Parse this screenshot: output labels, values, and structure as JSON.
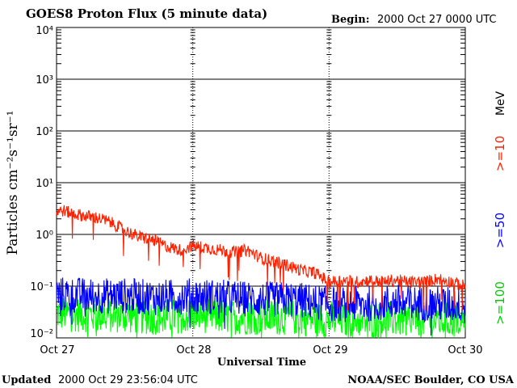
{
  "header": {
    "title": "GOES8 Proton Flux (5 minute data)",
    "begin_label": "Begin:",
    "begin_value": "2000 Oct 27 0000 UTC"
  },
  "footer": {
    "updated_label": "Updated",
    "updated_value": "2000 Oct 29 23:56:04 UTC",
    "credit": "NOAA/SEC Boulder, CO USA"
  },
  "chart_data": {
    "type": "line",
    "title": "GOES8 Proton Flux (5 minute data)",
    "xlabel": "Universal Time",
    "ylabel": "Particles cm⁻²s⁻¹sr⁻¹",
    "yscale": "log",
    "ylim": [
      0.01,
      10000
    ],
    "ytick_labels": [
      "10⁻²",
      "10⁻¹",
      "10⁰",
      "10¹",
      "10²",
      "10³",
      "10⁴"
    ],
    "x_categories": [
      "Oct 27",
      "Oct 28",
      "Oct 29",
      "Oct 30"
    ],
    "grid": true,
    "legend_position": "right",
    "legend_unit": "MeV",
    "series": [
      {
        "name": ">=10",
        "color": "#ff2000",
        "x": [
          0,
          0.05,
          0.1,
          0.2,
          0.3,
          0.4,
          0.5,
          0.6,
          0.7,
          0.8,
          0.9,
          1.0,
          1.1,
          1.2,
          1.3,
          1.4,
          1.5,
          1.6,
          1.7,
          1.8,
          1.9,
          2.0,
          2.1,
          2.2,
          2.3,
          2.4,
          2.5,
          2.6,
          2.7,
          2.8,
          2.9,
          3.0
        ],
        "values": [
          2.8,
          2.9,
          2.6,
          2.3,
          2.1,
          1.7,
          1.2,
          0.9,
          0.8,
          0.6,
          0.5,
          0.6,
          0.55,
          0.5,
          0.45,
          0.5,
          0.35,
          0.3,
          0.25,
          0.2,
          0.18,
          0.12,
          0.13,
          0.12,
          0.13,
          0.12,
          0.13,
          0.12,
          0.12,
          0.14,
          0.12,
          0.1
        ]
      },
      {
        "name": ">=50",
        "color": "#0000ff",
        "x": [
          0,
          0.25,
          0.5,
          0.75,
          1.0,
          1.25,
          1.5,
          1.75,
          2.0,
          2.25,
          2.5,
          2.75,
          3.0
        ],
        "values": [
          0.07,
          0.065,
          0.065,
          0.06,
          0.065,
          0.06,
          0.055,
          0.055,
          0.045,
          0.045,
          0.05,
          0.045,
          0.045
        ]
      },
      {
        "name": ">=100",
        "color": "#00ff00",
        "x": [
          0,
          0.25,
          0.5,
          0.75,
          1.0,
          1.25,
          1.5,
          1.75,
          2.0,
          2.25,
          2.5,
          2.75,
          3.0
        ],
        "values": [
          0.03,
          0.028,
          0.027,
          0.025,
          0.028,
          0.026,
          0.025,
          0.025,
          0.022,
          0.022,
          0.023,
          0.022,
          0.022
        ]
      }
    ]
  }
}
